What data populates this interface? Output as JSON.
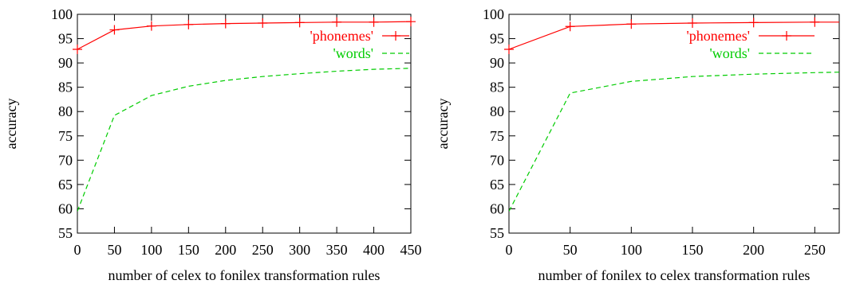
{
  "chart_data": [
    {
      "type": "line",
      "xlabel": "number of celex to fonilex transformation rules",
      "ylabel": "accuracy",
      "xlim": [
        0,
        450
      ],
      "ylim": [
        55,
        100
      ],
      "xticks": [
        0,
        50,
        100,
        150,
        200,
        250,
        300,
        350,
        400,
        450
      ],
      "yticks": [
        55,
        60,
        65,
        70,
        75,
        80,
        85,
        90,
        95,
        100
      ],
      "grid": false,
      "legend_position": "top-right",
      "series": [
        {
          "name": "'phonemes'",
          "color": "#ff0000",
          "style": "solid",
          "marker": "plus",
          "x": [
            0,
            50,
            100,
            150,
            200,
            250,
            300,
            350,
            400,
            450
          ],
          "y": [
            92.8,
            96.8,
            97.6,
            97.9,
            98.1,
            98.2,
            98.3,
            98.4,
            98.4,
            98.5
          ]
        },
        {
          "name": "'words'",
          "color": "#00cc00",
          "style": "dashed",
          "x": [
            0,
            50,
            100,
            150,
            200,
            250,
            300,
            350,
            400,
            450
          ],
          "y": [
            59.5,
            79.2,
            83.3,
            85.2,
            86.4,
            87.2,
            87.8,
            88.3,
            88.7,
            88.9
          ]
        }
      ]
    },
    {
      "type": "line",
      "xlabel": "number of fonilex to celex transformation rules",
      "ylabel": "accuracy",
      "xlim": [
        0,
        270
      ],
      "ylim": [
        55,
        100
      ],
      "xticks": [
        0,
        50,
        100,
        150,
        200,
        250
      ],
      "yticks": [
        55,
        60,
        65,
        70,
        75,
        80,
        85,
        90,
        95,
        100
      ],
      "grid": false,
      "legend_position": "top-right",
      "series": [
        {
          "name": "'phonemes'",
          "color": "#ff0000",
          "style": "solid",
          "marker": "plus",
          "x": [
            0,
            50,
            100,
            150,
            200,
            250,
            270
          ],
          "y": [
            92.8,
            97.5,
            98.0,
            98.2,
            98.3,
            98.4,
            98.4
          ],
          "markers_at": [
            0,
            50,
            100,
            150,
            200,
            250
          ]
        },
        {
          "name": "'words'",
          "color": "#00cc00",
          "style": "dashed",
          "x": [
            0,
            50,
            100,
            150,
            200,
            250,
            270
          ],
          "y": [
            59.5,
            83.8,
            86.2,
            87.2,
            87.7,
            88.0,
            88.1
          ]
        }
      ]
    }
  ]
}
